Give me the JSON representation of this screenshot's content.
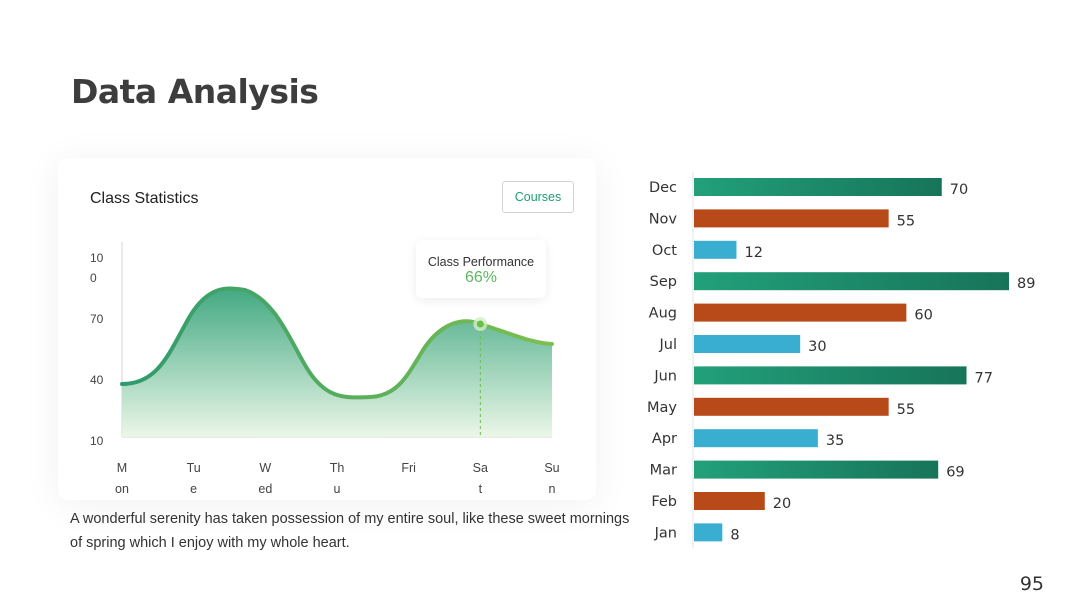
{
  "title": "Data Analysis",
  "card": {
    "title": "Class Statistics",
    "button_label": "Courses",
    "tooltip": {
      "label": "Class Performance",
      "value": "66%"
    }
  },
  "description": "A wonderful serenity has taken possession of my entire soul, like these sweet mornings of spring which I enjoy with my whole heart.",
  "page_number": "95",
  "colors": {
    "green": "#1f9a72",
    "orange": "#b84a1a",
    "blue": "#3aaed0",
    "line": "#6abf4b"
  },
  "chart_data": [
    {
      "type": "area",
      "title": "Class Statistics",
      "x": [
        "Mon",
        "Tue",
        "Wed",
        "Thu",
        "Fri",
        "Sat",
        "Sun"
      ],
      "y_ticks": [
        "100",
        "70",
        "40",
        "10"
      ],
      "ylim": [
        10,
        100
      ],
      "highlight": {
        "x": "Sat",
        "label": "Class Performance",
        "value": 66
      }
    },
    {
      "type": "bar",
      "orientation": "horizontal",
      "categories": [
        "Dec",
        "Nov",
        "Oct",
        "Sep",
        "Aug",
        "Jul",
        "Jun",
        "May",
        "Apr",
        "Mar",
        "Feb",
        "Jan"
      ],
      "values": [
        70,
        55,
        12,
        89,
        60,
        30,
        77,
        55,
        35,
        69,
        20,
        8
      ],
      "color_cycle": [
        "green",
        "orange",
        "blue"
      ],
      "data_labels": true
    }
  ]
}
